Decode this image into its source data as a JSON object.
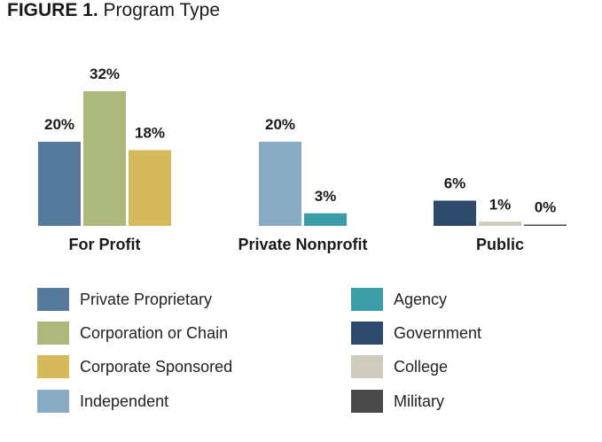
{
  "chart_data": {
    "type": "bar",
    "title_prefix": "FIGURE 1.",
    "title": "Program Type",
    "value_suffix": "%",
    "ylim": [
      0,
      32
    ],
    "grid": false,
    "legend_position": "bottom",
    "groups": [
      {
        "label": "For Profit",
        "bars": [
          {
            "series": "Private Proprietary",
            "value": 20,
            "label": "20%"
          },
          {
            "series": "Corporation or Chain",
            "value": 32,
            "label": "32%"
          },
          {
            "series": "Corporate Sponsored",
            "value": 18,
            "label": "18%"
          }
        ]
      },
      {
        "label": "Private Nonprofit",
        "bars": [
          {
            "series": "Independent",
            "value": 20,
            "label": "20%"
          },
          {
            "series": "Agency",
            "value": 3,
            "label": "3%"
          }
        ]
      },
      {
        "label": "Public",
        "bars": [
          {
            "series": "Government",
            "value": 6,
            "label": "6%"
          },
          {
            "series": "College",
            "value": 1,
            "label": "1%"
          },
          {
            "series": "Military",
            "value": 0,
            "label": "0%"
          }
        ]
      }
    ],
    "series": [
      {
        "name": "Private Proprietary",
        "color": "#557a9b"
      },
      {
        "name": "Corporation or Chain",
        "color": "#adb97c"
      },
      {
        "name": "Corporate Sponsored",
        "color": "#d6b95a"
      },
      {
        "name": "Independent",
        "color": "#8aabc4"
      },
      {
        "name": "Agency",
        "color": "#3a9da8"
      },
      {
        "name": "Government",
        "color": "#2d4a6b"
      },
      {
        "name": "College",
        "color": "#cfcbbf"
      },
      {
        "name": "Military",
        "color": "#4a4a4a"
      }
    ]
  }
}
